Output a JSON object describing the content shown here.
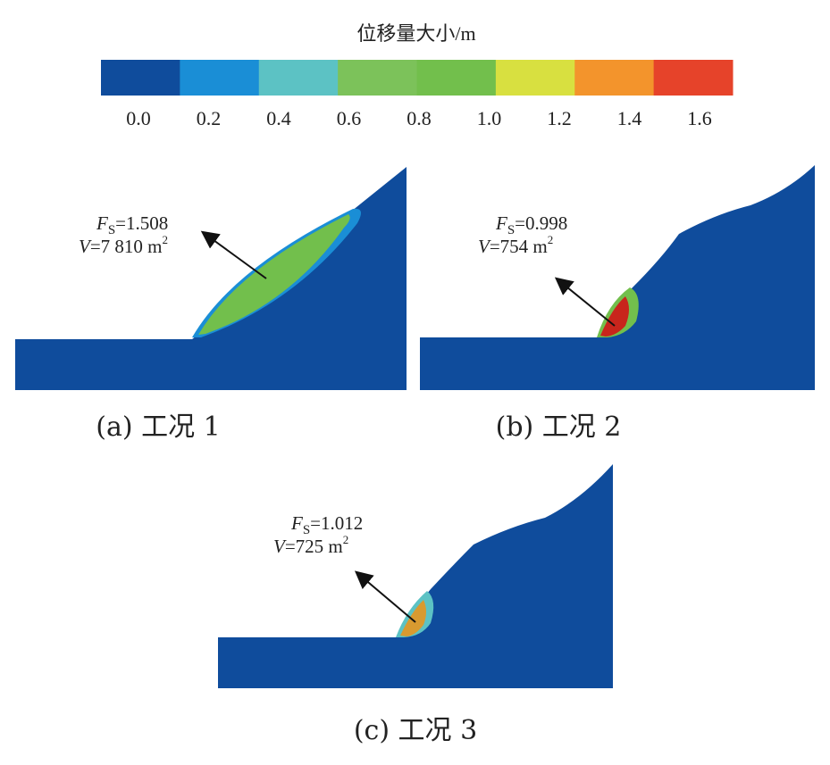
{
  "colorbar": {
    "title": "位移量大小/m",
    "colors": [
      "#0f4c9c",
      "#1a8ed6",
      "#5cc2c4",
      "#7cc25a",
      "#72bf4c",
      "#d8e040",
      "#f3942c",
      "#e6432a"
    ],
    "ticks": [
      "0.0",
      "0.2",
      "0.4",
      "0.6",
      "0.8",
      "1.0",
      "1.2",
      "1.4",
      "1.6"
    ]
  },
  "panels": [
    {
      "fs": {
        "symbol": "F",
        "subscript": "S",
        "text": "=1.508"
      },
      "volume": {
        "symbol": "V",
        "text": "=7 810 m",
        "superscript": "2"
      },
      "caption": "(a) 工况 1"
    },
    {
      "fs": {
        "symbol": "F",
        "subscript": "S",
        "text": "=0.998"
      },
      "volume": {
        "symbol": "V",
        "text": "=754 m",
        "superscript": "2"
      },
      "caption": "(b) 工况 2"
    },
    {
      "fs": {
        "symbol": "F",
        "subscript": "S",
        "text": "=1.012"
      },
      "volume": {
        "symbol": "V",
        "text": "=725 m",
        "superscript": "2"
      },
      "caption": "(c) 工况 3"
    }
  ]
}
